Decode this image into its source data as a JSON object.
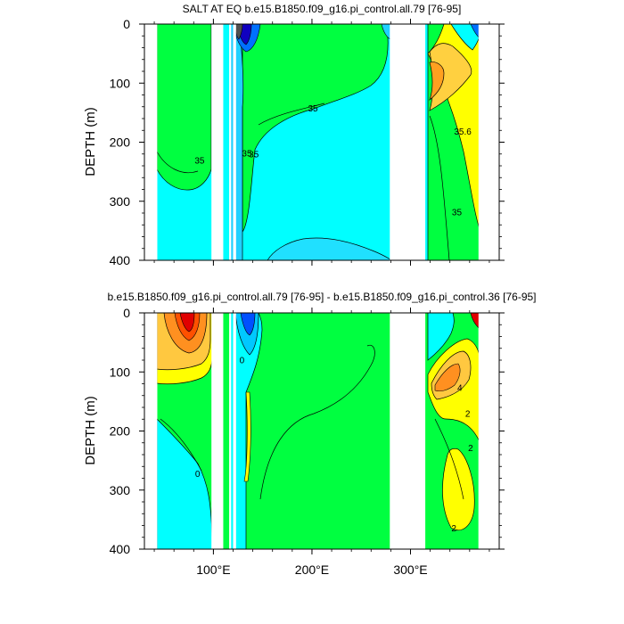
{
  "chart_data": [
    {
      "type": "contour",
      "title": "SALT AT EQ b.e15.B1850.f09_g16.pi_control.all.79 [76-95]",
      "ylabel": "DEPTH (m)",
      "xlabel": "",
      "ylim": [
        0,
        400
      ],
      "y_reversed": true,
      "xlim": [
        30,
        390
      ],
      "y_ticks": [
        "0",
        "100",
        "200",
        "300",
        "400"
      ],
      "x_ticks": [
        "100°E",
        "200°E",
        "300°E"
      ],
      "land_gaps_lon": [
        [
          98,
          110
        ],
        [
          116,
          118
        ],
        [
          120,
          123
        ],
        [
          279,
          315
        ],
        [
          369,
          390
        ]
      ],
      "contour_labels": [
        {
          "text": "35",
          "lon": 201,
          "depth": 148
        },
        {
          "text": "35",
          "lon": 86,
          "depth": 236
        },
        {
          "text": "35",
          "lon": 134,
          "depth": 224
        },
        {
          "text": "35",
          "lon": 141,
          "depth": 226
        },
        {
          "text": "35.6",
          "lon": 353,
          "depth": 187
        },
        {
          "text": "35",
          "lon": 347,
          "depth": 324
        }
      ],
      "colors": {
        "background": "#00ffff",
        "high": "#00ff40",
        "highest": "#ffff00",
        "warm": "#ffd040",
        "hot": "#ffa020",
        "fresh": "#00c0ff",
        "fresher": "#0070ff",
        "freshest": "#1000c0",
        "extreme": "#505050"
      }
    },
    {
      "type": "contour",
      "title": "b.e15.B1850.f09_g16.pi_control.all.79 [76-95] - b.e15.B1850.f09_g16.pi_control.36 [76-95]",
      "ylabel": "DEPTH (m)",
      "xlabel": "",
      "ylim": [
        0,
        400
      ],
      "y_reversed": true,
      "xlim": [
        30,
        390
      ],
      "y_ticks": [
        "0",
        "100",
        "200",
        "300",
        "400"
      ],
      "x_ticks": [
        "100°E",
        "200°E",
        "300°E"
      ],
      "land_gaps_lon": [
        [
          98,
          110
        ],
        [
          116,
          118
        ],
        [
          120,
          123
        ],
        [
          279,
          315
        ],
        [
          369,
          390
        ]
      ],
      "contour_labels": [
        {
          "text": "0",
          "lon": 84,
          "depth": 278
        },
        {
          "text": "0",
          "lon": 129,
          "depth": 85
        },
        {
          "text": "4",
          "lon": 350,
          "depth": 132
        },
        {
          "text": "2",
          "lon": 358,
          "depth": 176
        },
        {
          "text": "2",
          "lon": 361,
          "depth": 234
        },
        {
          "text": "2",
          "lon": 344,
          "depth": 370
        }
      ],
      "colors": {
        "background": "#00ff40",
        "negative": "#00ffff",
        "more_negative": "#00c8ff",
        "most_negative": "#0050ff",
        "positive": "#ffff00",
        "more_positive": "#ffc840",
        "most_positive": "#ff9020",
        "extreme": "#e00000"
      }
    }
  ]
}
